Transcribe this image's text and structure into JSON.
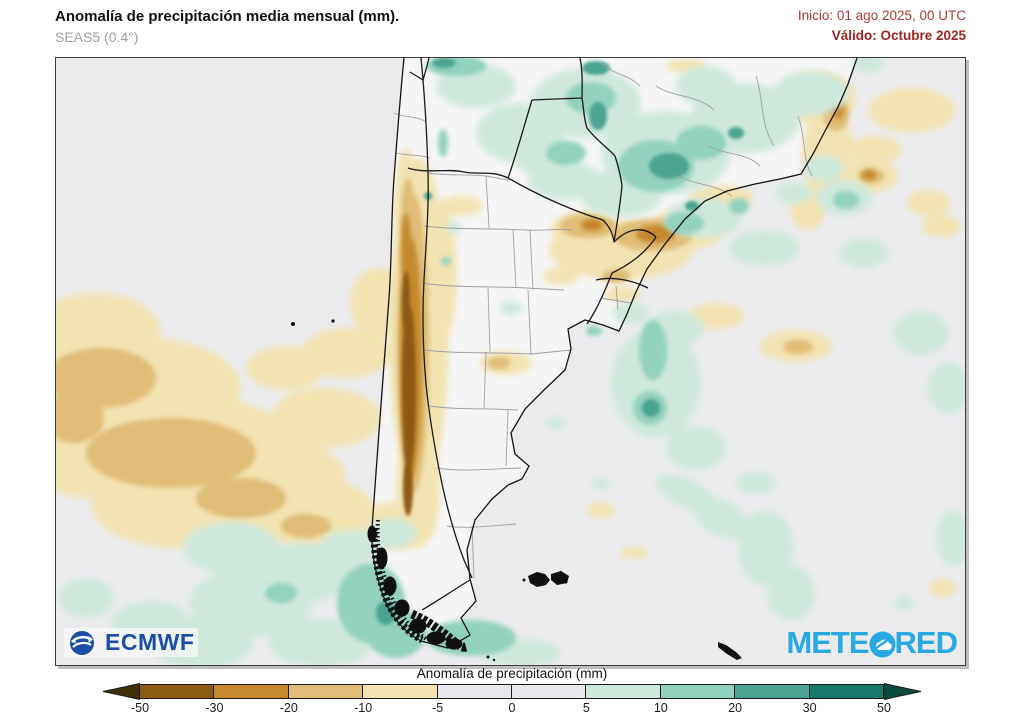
{
  "header": {
    "title": "Anomalía de precipitación media mensual (mm).",
    "subtitle": "SEAS5 (0.4°)",
    "init": "Inicio: 01 ago 2025, 00 UTC",
    "valid": "Válido: Octubre 2025"
  },
  "logos": {
    "ecmwf": "ECMWF",
    "meteored_full": "METEORED",
    "meteored_left": "METE",
    "meteored_right": "RED"
  },
  "colorbar": {
    "label": "Anomalía de precipitación (mm)",
    "ticks": [
      "-50",
      "-30",
      "-20",
      "-10",
      "-5",
      "0",
      "5",
      "10",
      "20",
      "30",
      "50"
    ],
    "segments": [
      "#8d5a13",
      "#c5882f",
      "#dfbd76",
      "#f2e3b1",
      "#e9e9ed",
      "#e9e9ed",
      "#cfe8dc",
      "#92d1bd",
      "#4ba491",
      "#17796a"
    ],
    "left_arrow_color": "#40300a",
    "right_arrow_color": "#0b4b3d"
  },
  "colors": {
    "header_accent": "#a93c34",
    "valid_accent": "#9c2520",
    "ecmwf_blue": "#1b4fa5",
    "meteored_cyan": "#29a9e1",
    "map_background": "#ebebee",
    "land": "#f5f5f6",
    "anomaly_negative": [
      "#f2e3b1",
      "#dfbd76",
      "#c5882f",
      "#8d5a13"
    ],
    "anomaly_positive": [
      "#cfe8dc",
      "#92d1bd",
      "#4ba491",
      "#17796a"
    ]
  }
}
